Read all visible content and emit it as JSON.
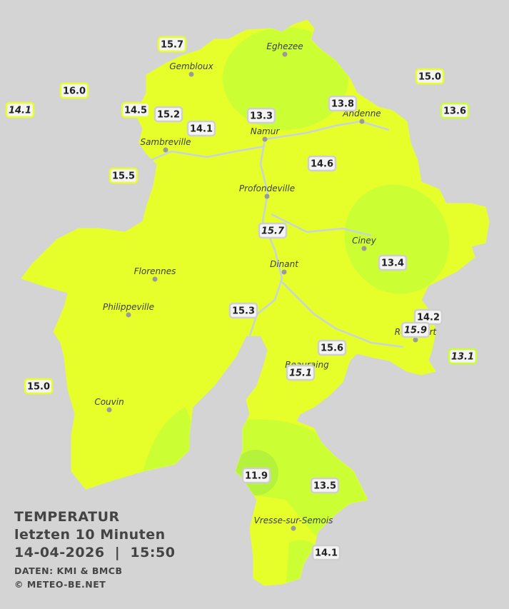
{
  "legend": {
    "title": "TEMPERATUR",
    "period": "letzten 10 Minuten",
    "datetime": "14-04-2026  |  15:50",
    "source": "DATEN: KMI & BMCB",
    "copyright": "© METEO-BE.NET"
  },
  "towns": [
    "Eghezee",
    "Gembloux",
    "Andenne",
    "Namur",
    "Sambreville",
    "Profondeville",
    "Ciney",
    "Dinant",
    "Florennes",
    "Philippeville",
    "Beauraing",
    "Rochefort",
    "Couvin",
    "Vresse-sur-Semois"
  ],
  "stations": [
    {
      "label": "15.7",
      "italic": false,
      "border": "#e6ff2b"
    },
    {
      "label": "16.0",
      "italic": false,
      "border": "#e6ff2b"
    },
    {
      "label": "14.1",
      "italic": true,
      "border": "#e6ff2b"
    },
    {
      "label": "14.5",
      "italic": false,
      "border": "#e6ff2b"
    },
    {
      "label": "15.2",
      "italic": false,
      "border": "#cfcfcf"
    },
    {
      "label": "14.1",
      "italic": false,
      "border": "#cfcfcf"
    },
    {
      "label": "13.3",
      "italic": false,
      "border": "#cfcfcf"
    },
    {
      "label": "13.8",
      "italic": false,
      "border": "#cfcfcf"
    },
    {
      "label": "15.0",
      "italic": false,
      "border": "#e6ff2b"
    },
    {
      "label": "13.6",
      "italic": false,
      "border": "#ccff33"
    },
    {
      "label": "15.5",
      "italic": false,
      "border": "#e6ff2b"
    },
    {
      "label": "14.6",
      "italic": false,
      "border": "#cfcfcf"
    },
    {
      "label": "15.7",
      "italic": true,
      "border": "#cfcfcf"
    },
    {
      "label": "13.4",
      "italic": false,
      "border": "#cfcfcf"
    },
    {
      "label": "15.3",
      "italic": false,
      "border": "#cfcfcf"
    },
    {
      "label": "14.2",
      "italic": false,
      "border": "#cfcfcf"
    },
    {
      "label": "15.9",
      "italic": true,
      "border": "#cfcfcf"
    },
    {
      "label": "15.6",
      "italic": false,
      "border": "#cfcfcf"
    },
    {
      "label": "13.1",
      "italic": true,
      "border": "#ccff33"
    },
    {
      "label": "15.1",
      "italic": true,
      "border": "#cfcfcf"
    },
    {
      "label": "15.0",
      "italic": false,
      "border": "#e6ff2b"
    },
    {
      "label": "11.9",
      "italic": false,
      "border": "#cfcfcf"
    },
    {
      "label": "13.5",
      "italic": false,
      "border": "#cfcfcf"
    },
    {
      "label": "14.1",
      "italic": false,
      "border": "#cfcfcf"
    }
  ]
}
